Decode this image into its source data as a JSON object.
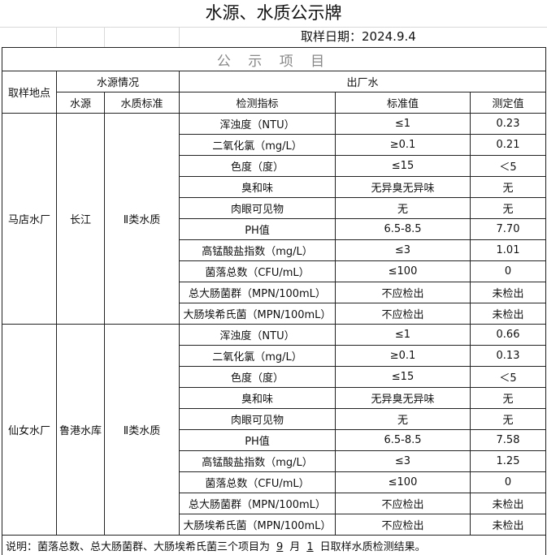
{
  "title": "水源、水质公示牌",
  "date": "取样日期：2024.9.4",
  "section": "公 示 项 目",
  "headers": {
    "site": "取样地点",
    "source_info": "水源情况",
    "outflow": "出厂水",
    "source": "水源",
    "source_std": "水质标准",
    "indicator": "检测指标",
    "standard": "标准值",
    "measured": "测定值"
  },
  "sites": [
    {
      "name": "马店水厂",
      "source": "长江",
      "std": "Ⅱ类水质",
      "rows": [
        [
          "浑浊度（NTU）",
          "≤1",
          "0.23"
        ],
        [
          "二氧化氯（mg/L）",
          "≥0.1",
          "0.21"
        ],
        [
          "色度（度）",
          "≤15",
          "＜5"
        ],
        [
          "臭和味",
          "无异臭无异味",
          "无"
        ],
        [
          "肉眼可见物",
          "无",
          "无"
        ],
        [
          "PH值",
          "6.5-8.5",
          "7.70"
        ],
        [
          "高锰酸盐指数（mg/L）",
          "≤3",
          "1.01"
        ],
        [
          "菌落总数（CFU/mL）",
          "≤100",
          "0"
        ],
        [
          "总大肠菌群（MPN/100mL）",
          "不应检出",
          "未检出"
        ],
        [
          "大肠埃希氏菌（MPN/100mL）",
          "不应检出",
          "未检出"
        ]
      ]
    },
    {
      "name": "仙女水厂",
      "source": "鲁港水库",
      "std": "Ⅱ类水质",
      "rows": [
        [
          "浑浊度（NTU）",
          "≤1",
          "0.66"
        ],
        [
          "二氧化氯（mg/L）",
          "≥0.1",
          "0.13"
        ],
        [
          "色度（度）",
          "≤15",
          "＜5"
        ],
        [
          "臭和味",
          "无异臭无异味",
          "无"
        ],
        [
          "肉眼可见物",
          "无",
          "无"
        ],
        [
          "PH值",
          "6.5-8.5",
          "7.58"
        ],
        [
          "高锰酸盐指数（mg/L）",
          "≤3",
          "1.25"
        ],
        [
          "菌落总数（CFU/mL）",
          "≤100",
          "0"
        ],
        [
          "总大肠菌群（MPN/100mL）",
          "不应检出",
          "未检出"
        ],
        [
          "大肠埃希氏菌（MPN/100mL）",
          "不应检出",
          "未检出"
        ]
      ]
    }
  ],
  "note": {
    "prefix": "说明：菌落总数、总大肠菌群、大肠埃希氏菌三个项目为",
    "month": "9",
    "month_unit": "月",
    "day": "1",
    "suffix": "日取样水质检测结果。"
  }
}
